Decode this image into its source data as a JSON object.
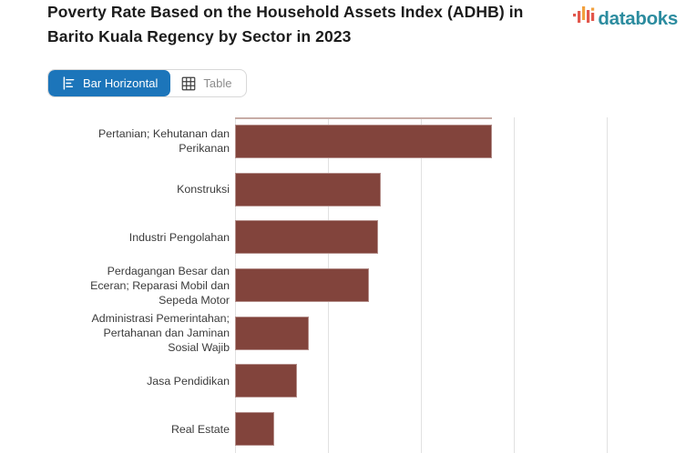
{
  "header": {
    "title": "Poverty Rate Based on the Household Assets Index (ADHB) in Barito Kuala Regency by Sector in 2023",
    "brand_name": "databoks"
  },
  "toolbar": {
    "bar_horizontal_label": "Bar Horizontal",
    "table_label": "Table",
    "active_view": "Bar Horizontal"
  },
  "icons": {
    "brand_icon": "databoks-bar-chart-logo",
    "bar_horizontal_icon": "horizontal-bar-chart",
    "table_icon": "table-grid"
  },
  "colors": {
    "bar": "#82443c",
    "active_button_blue": "#1c75ba",
    "brand_teal": "#2c8c9f",
    "brand_red": "#e2574c",
    "brand_orange": "#f2a03d",
    "gridline": "#e1e1e1",
    "title_text": "#1c1c1c",
    "label_text": "#3b3b3b",
    "inactive_button_text": "#8c8c8c"
  },
  "chart_data": {
    "type": "bar",
    "orientation": "horizontal",
    "title": "Poverty Rate Based on the Household Assets Index (ADHB) in Barito Kuala Regency by Sector in 2023",
    "categories": [
      "Pertanian; Kehutanan dan Perikanan",
      "Konstruksi",
      "Industri Pengolahan",
      "Perdagangan Besar dan Eceran; Reparasi Mobil dan Sepeda Motor",
      "Administrasi Pemerintahan; Pertahanan dan Jaminan Sosial Wajib",
      "Jasa Pendidikan",
      "Real Estate"
    ],
    "label_lines": [
      [
        "Pertanian; Kehutanan dan",
        "Perikanan"
      ],
      [
        "Konstruksi"
      ],
      [
        "Industri Pengolahan"
      ],
      [
        "Perdagangan Besar dan",
        "Eceran; Reparasi Mobil dan",
        "Sepeda Motor"
      ],
      [
        "Administrasi Pemerintahan;",
        "Pertahanan dan Jaminan",
        "Sosial Wajib"
      ],
      [
        "Jasa Pendidikan"
      ],
      [
        "Real Estate"
      ]
    ],
    "values": [
      2.76,
      1.57,
      1.54,
      1.44,
      0.79,
      0.67,
      0.42
    ],
    "value_note": "No numeric tick labels are rendered in the image; values estimated in gridline units (1 unit = one gridline interval).",
    "xlim": [
      0,
      4
    ],
    "gridline_count": 5,
    "grid": true,
    "legend_position": "none",
    "xlabel": "",
    "ylabel": "",
    "bar_color": "#82443c",
    "cropped": "plot area is cut off at top and bottom edges of the screenshot"
  }
}
